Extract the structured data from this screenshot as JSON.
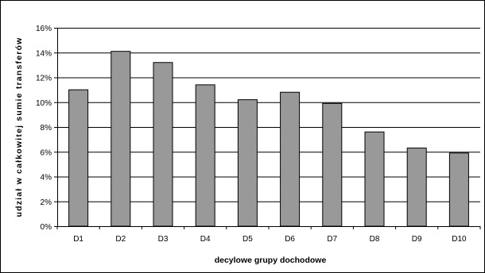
{
  "chart_data": {
    "type": "bar",
    "title": "",
    "xlabel": "decylowe grupy dochodowe",
    "ylabel": "udział w całkowitej sumie transferów",
    "categories": [
      "D1",
      "D2",
      "D3",
      "D4",
      "D5",
      "D6",
      "D7",
      "D8",
      "D9",
      "D10"
    ],
    "values": [
      11.0,
      14.1,
      13.2,
      11.4,
      10.2,
      10.8,
      9.9,
      7.6,
      6.3,
      5.9
    ],
    "value_unit": "%",
    "ylim": [
      0,
      16
    ],
    "y_ticks": [
      0,
      2,
      4,
      6,
      8,
      10,
      12,
      14,
      16
    ],
    "y_tick_labels": [
      "0%",
      "2%",
      "4%",
      "6%",
      "8%",
      "10%",
      "12%",
      "14%",
      "16%"
    ],
    "grid": "horizontal",
    "legend": "none",
    "colors": {
      "bar_fill": "#999999",
      "bar_stroke": "#000000",
      "grid": "#000000",
      "plot_background": "#ffffff"
    }
  }
}
